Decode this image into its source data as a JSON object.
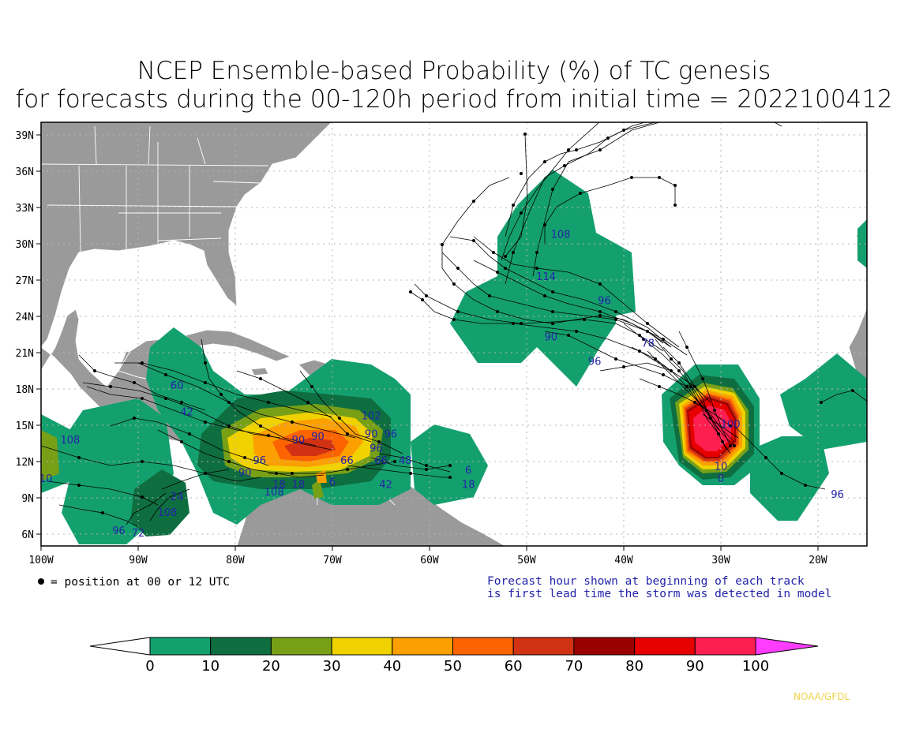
{
  "title": {
    "line1": "NCEP Ensemble-based Probability (%) of TC genesis",
    "line2": "for forecasts during the 00-120h period from initial time = 2022100412"
  },
  "axes": {
    "lon_labels": [
      "100W",
      "90W",
      "80W",
      "70W",
      "60W",
      "50W",
      "40W",
      "30W",
      "20W"
    ],
    "lat_labels": [
      "39N",
      "36N",
      "33N",
      "30N",
      "27N",
      "24N",
      "21N",
      "18N",
      "15N",
      "12N",
      "9N",
      "6N"
    ]
  },
  "legend": {
    "dot_note": "= position at 00 or 12 UTC",
    "forecast_note_line1": "Forecast hour shown at beginning of each track",
    "forecast_note_line2": "is first lead time the storm was detected in model"
  },
  "colorbar": {
    "labels": [
      "0",
      "10",
      "20",
      "30",
      "40",
      "50",
      "60",
      "70",
      "80",
      "90",
      "100"
    ],
    "colors": [
      "#ffffff",
      "#14a06e",
      "#0e6e40",
      "#78a016",
      "#f0d200",
      "#fba000",
      "#fb6400",
      "#d23214",
      "#9b0000",
      "#e60000",
      "#ff1e50",
      "#ff3cff"
    ]
  },
  "credit": "NOAA/GFDL",
  "track_hours": [
    {
      "t": "108",
      "lon": -46.5,
      "lat": 30.5
    },
    {
      "t": "114",
      "lon": -48,
      "lat": 27
    },
    {
      "t": "96",
      "lon": -42,
      "lat": 25
    },
    {
      "t": "90",
      "lon": -47.5,
      "lat": 22
    },
    {
      "t": "96",
      "lon": -43,
      "lat": 20
    },
    {
      "t": "78",
      "lon": -37.5,
      "lat": 21.5
    },
    {
      "t": "60",
      "lon": -86,
      "lat": 18
    },
    {
      "t": "42",
      "lon": -85,
      "lat": 15.8
    },
    {
      "t": "108",
      "lon": -97,
      "lat": 13.5
    },
    {
      "t": "102",
      "lon": -66,
      "lat": 15.5
    },
    {
      "t": "90",
      "lon": -66,
      "lat": 14
    },
    {
      "t": "96",
      "lon": -64,
      "lat": 14
    },
    {
      "t": "96",
      "lon": -65.5,
      "lat": 12.8
    },
    {
      "t": "90",
      "lon": -71.5,
      "lat": 13.8
    },
    {
      "t": "90",
      "lon": -73.5,
      "lat": 13.5
    },
    {
      "t": "96",
      "lon": -77.5,
      "lat": 11.8
    },
    {
      "t": "90",
      "lon": -79,
      "lat": 10.8
    },
    {
      "t": "66",
      "lon": -68.5,
      "lat": 11.8
    },
    {
      "t": "66",
      "lon": -65,
      "lat": 11.8
    },
    {
      "t": "48",
      "lon": -62.5,
      "lat": 11.8
    },
    {
      "t": "42",
      "lon": -64.5,
      "lat": 9.8
    },
    {
      "t": "18",
      "lon": -73.5,
      "lat": 9.8
    },
    {
      "t": "18",
      "lon": -75.5,
      "lat": 9.8
    },
    {
      "t": "108",
      "lon": -76,
      "lat": 9.2
    },
    {
      "t": "6",
      "lon": -70,
      "lat": 10
    },
    {
      "t": "6",
      "lon": -56,
      "lat": 11
    },
    {
      "t": "18",
      "lon": -56,
      "lat": 9.8
    },
    {
      "t": "24",
      "lon": -86,
      "lat": 8.8
    },
    {
      "t": "108",
      "lon": -87,
      "lat": 7.5
    },
    {
      "t": "96",
      "lon": -92,
      "lat": 6
    },
    {
      "t": "72",
      "lon": -90,
      "lat": 5.8
    },
    {
      "t": "10",
      "lon": -99.5,
      "lat": 10.3
    },
    {
      "t": "100",
      "lon": -29,
      "lat": 14.8
    },
    {
      "t": "10",
      "lon": -30,
      "lat": 11.3
    },
    {
      "t": "0",
      "lon": -30,
      "lat": 10.3
    },
    {
      "t": "96",
      "lon": -18,
      "lat": 9
    }
  ]
}
